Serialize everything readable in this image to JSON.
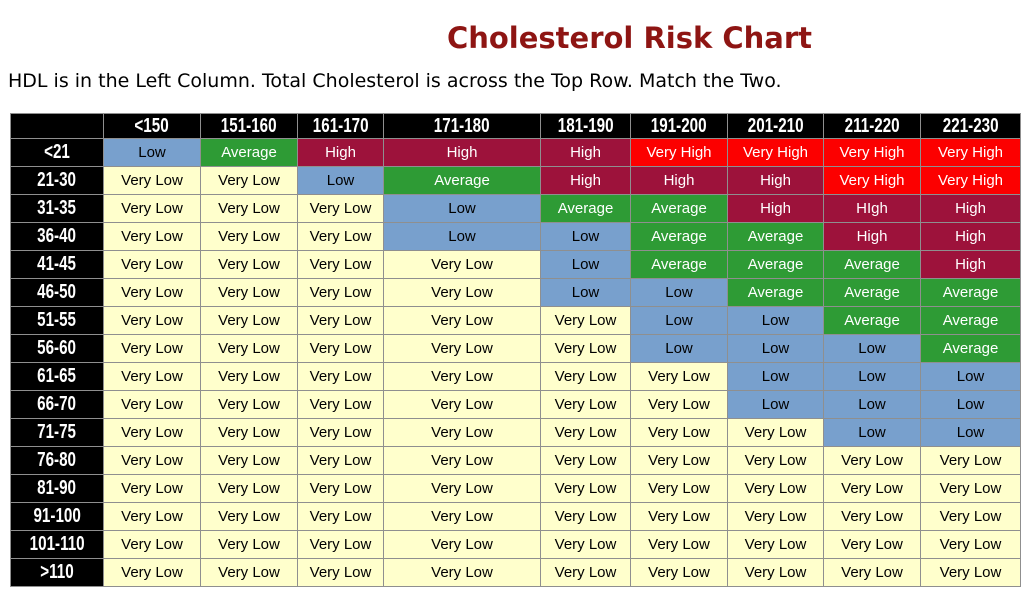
{
  "header": {
    "title": "Cholesterol Risk Chart",
    "subtitle": "HDL is in the Left Column. Total Cholesterol is across the Top Row. Match the Two."
  },
  "chart_data": {
    "type": "heatmap",
    "title": "Cholesterol Risk Chart",
    "x_axis": "Total Cholesterol",
    "y_axis": "HDL",
    "legend_position": "none",
    "grid": true,
    "columns": [
      "<150",
      "151-160",
      "161-170",
      "171-180",
      "181-190",
      "191-200",
      "201-210",
      "211-220",
      "221-230"
    ],
    "row_labels": [
      "<21",
      "21-30",
      "31-35",
      "36-40",
      "41-45",
      "46-50",
      "51-55",
      "56-60",
      "61-65",
      "66-70",
      "71-75",
      "76-80",
      "81-90",
      "91-100",
      "101-110",
      ">110"
    ],
    "values": [
      [
        "Low",
        "Average",
        "High",
        "High",
        "High",
        "Very High",
        "Very High",
        "Very High",
        "Very High"
      ],
      [
        "Very Low",
        "Very Low",
        "Low",
        "Average",
        "High",
        "High",
        "High",
        "Very High",
        "Very High"
      ],
      [
        "Very Low",
        "Very Low",
        "Very Low",
        "Low",
        "Average",
        "Average",
        "High",
        "HIgh",
        "High"
      ],
      [
        "Very Low",
        "Very Low",
        "Very Low",
        "Low",
        "Low",
        "Average",
        "Average",
        "High",
        "High"
      ],
      [
        "Very Low",
        "Very Low",
        "Very Low",
        "Very Low",
        "Low",
        "Average",
        "Average",
        "Average",
        "High"
      ],
      [
        "Very Low",
        "Very Low",
        "Very Low",
        "Very Low",
        "Low",
        "Low",
        "Average",
        "Average",
        "Average"
      ],
      [
        "Very Low",
        "Very Low",
        "Very Low",
        "Very Low",
        "Very Low",
        "Low",
        "Low",
        "Average",
        "Average"
      ],
      [
        "Very Low",
        "Very Low",
        "Very Low",
        "Very Low",
        "Very Low",
        "Low",
        "Low",
        "Low",
        "Average"
      ],
      [
        "Very Low",
        "Very Low",
        "Very Low",
        "Very Low",
        "Very Low",
        "Very Low",
        "Low",
        "Low",
        "Low"
      ],
      [
        "Very Low",
        "Very Low",
        "Very Low",
        "Very Low",
        "Very Low",
        "Very Low",
        "Low",
        "Low",
        "Low"
      ],
      [
        "Very Low",
        "Very Low",
        "Very Low",
        "Very Low",
        "Very Low",
        "Very Low",
        "Very Low",
        "Low",
        "Low"
      ],
      [
        "Very Low",
        "Very Low",
        "Very Low",
        "Very Low",
        "Very Low",
        "Very Low",
        "Very Low",
        "Very Low",
        "Very Low"
      ],
      [
        "Very Low",
        "Very Low",
        "Very Low",
        "Very Low",
        "Very Low",
        "Very Low",
        "Very Low",
        "Very Low",
        "Very Low"
      ],
      [
        "Very Low",
        "Very Low",
        "Very Low",
        "Very Low",
        "Very Low",
        "Very Low",
        "Very Low",
        "Very Low",
        "Very Low"
      ],
      [
        "Very Low",
        "Very Low",
        "Very Low",
        "Very Low",
        "Very Low",
        "Very Low",
        "Very Low",
        "Very Low",
        "Very Low"
      ],
      [
        "Very Low",
        "Very Low",
        "Very Low",
        "Very Low",
        "Very Low",
        "Very Low",
        "Very Low",
        "Very Low",
        "Very Low"
      ]
    ]
  },
  "colors": {
    "very_low": {
      "bg": "#FFFFCC",
      "text": "#000000"
    },
    "low": {
      "bg": "#78A0CD",
      "text": "#000000"
    },
    "average": {
      "bg": "#2E9B35",
      "text": "#FFFFFF"
    },
    "high": {
      "bg": "#9D123B",
      "text": "#FFFFFF"
    },
    "hhigh": {
      "bg": "#9D123B",
      "text": "#FFFFFF"
    },
    "very_high": {
      "bg": "#FC0000",
      "text": "#FFFFFF"
    },
    "header_bg": "#000000",
    "header_text": "#FFFFFF",
    "title_text": "#8E1513"
  }
}
